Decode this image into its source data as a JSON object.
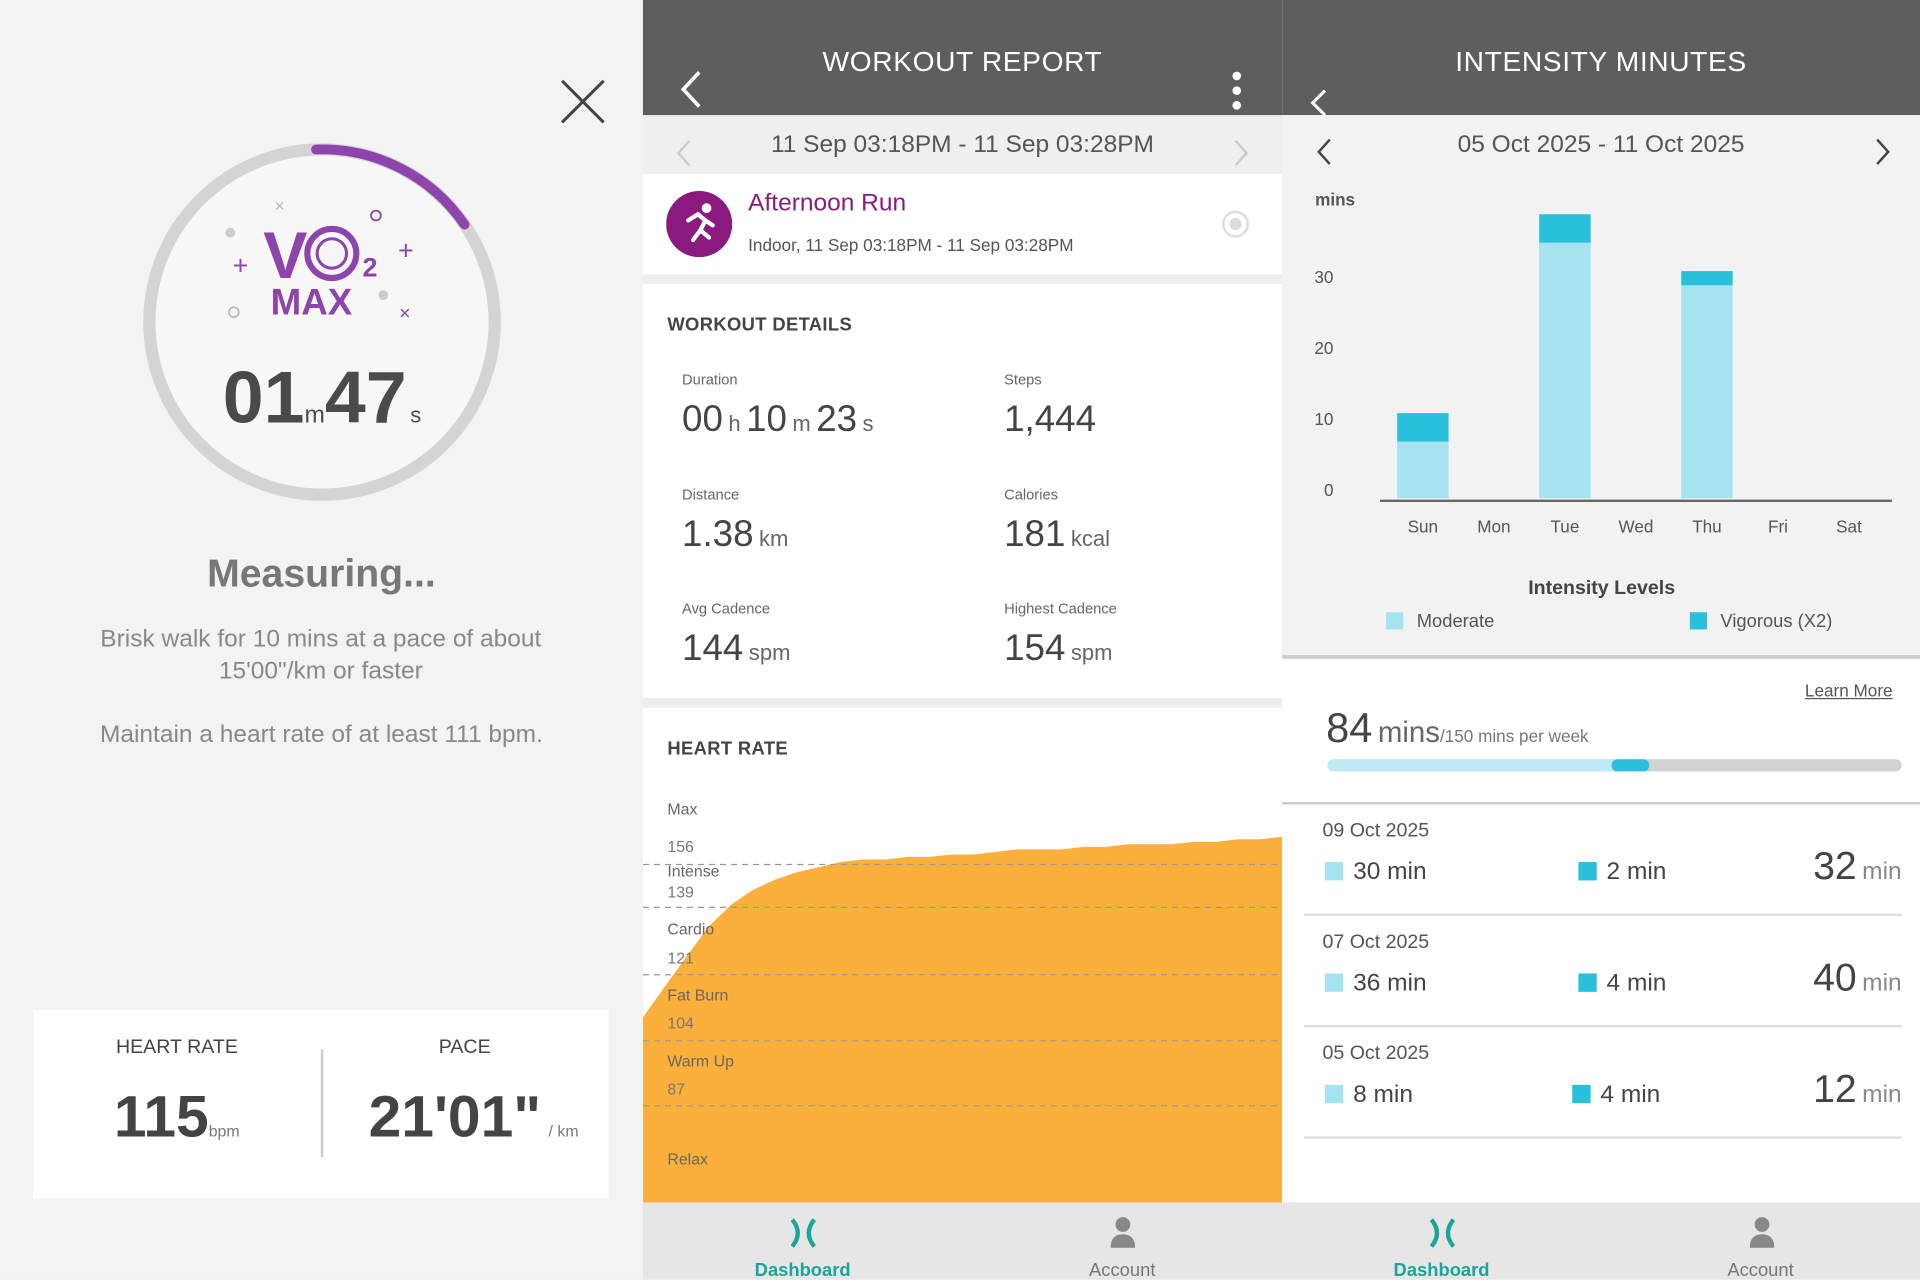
{
  "vo2": {
    "logo_text": "VO2 MAX",
    "timer_min": "01",
    "timer_min_unit": "m",
    "timer_sec": "47",
    "timer_sec_unit": "s",
    "progress_fraction": 0.16,
    "status": "Measuring...",
    "instruction_1": "Brisk walk for 10 mins at a pace of about 15'00\"/km or faster",
    "instruction_2": "Maintain a heart rate of at least 111 bpm.",
    "heart_rate_label": "HEART RATE",
    "heart_rate_value": "115",
    "heart_rate_unit": "bpm",
    "pace_label": "PACE",
    "pace_value": "21'01\"",
    "pace_unit": "/ km",
    "accent": "#8e44ad"
  },
  "workout": {
    "title": "WORKOUT REPORT",
    "range": "11 Sep 03:18PM - 11 Sep 03:28PM",
    "activity_name": "Afternoon Run",
    "activity_sub": "Indoor, 11 Sep 03:18PM - 11 Sep 03:28PM",
    "details_title": "WORKOUT DETAILS",
    "duration_label": "Duration",
    "duration": {
      "h": "00",
      "h_unit": "h",
      "m": "10",
      "m_unit": "m",
      "s": "23",
      "s_unit": "s"
    },
    "steps_label": "Steps",
    "steps": "1,444",
    "distance_label": "Distance",
    "distance": "1.38",
    "distance_unit": "km",
    "calories_label": "Calories",
    "calories": "181",
    "calories_unit": "kcal",
    "avg_cadence_label": "Avg Cadence",
    "avg_cadence": "144",
    "avg_cadence_unit": "spm",
    "high_cadence_label": "Highest Cadence",
    "high_cadence": "154",
    "high_cadence_unit": "spm",
    "heart_rate_title": "HEART RATE"
  },
  "intensity": {
    "title": "INTENSITY MINUTES",
    "range": "05 Oct 2025 - 11 Oct 2025",
    "learn_more": "Learn More",
    "total": "84",
    "total_unit": "mins",
    "goal_text": "/150 mins per week",
    "goal_fraction": 0.56,
    "entries": [
      {
        "date": "09 Oct 2025",
        "moderate": "30 min",
        "vigorous": "2 min",
        "total": "32",
        "unit": "min"
      },
      {
        "date": "07 Oct 2025",
        "moderate": "36 min",
        "vigorous": "4 min",
        "total": "40",
        "unit": "min"
      },
      {
        "date": "05 Oct 2025",
        "moderate": "8 min",
        "vigorous": "4 min",
        "total": "12",
        "unit": "min"
      }
    ]
  },
  "tabs": {
    "dashboard": "Dashboard",
    "account": "Account"
  },
  "colors": {
    "moderate": "#a6e3f0",
    "vigorous": "#29c0dc",
    "hr_fill": "#fbb03b",
    "teal": "#1aa59a",
    "purple": "#8b1a7e"
  },
  "chart_data": [
    {
      "type": "bar",
      "title": "Intensity Levels",
      "ylabel": "mins",
      "categories": [
        "Sun",
        "Mon",
        "Tue",
        "Wed",
        "Thu",
        "Fri",
        "Sat"
      ],
      "yticks": [
        "0",
        "10",
        "20",
        "30"
      ],
      "ylim": [
        0,
        40
      ],
      "stacked": true,
      "series": [
        {
          "name": "Moderate",
          "values": [
            8,
            0,
            36,
            0,
            30,
            0,
            0
          ]
        },
        {
          "name": "Vigorous (X2)",
          "values": [
            4,
            0,
            4,
            0,
            2,
            0,
            0
          ]
        }
      ],
      "legend": "bottom"
    },
    {
      "type": "area",
      "title": "HEART RATE",
      "zones": [
        {
          "name": "Max",
          "value": ""
        },
        {
          "name": "Intense",
          "value": "156"
        },
        {
          "name": "Cardio",
          "value": "139"
        },
        {
          "name": "Fat Burn",
          "value": "121"
        },
        {
          "name": "Warm Up",
          "value": "104"
        },
        {
          "name": "Relax",
          "value": "87"
        }
      ],
      "y": [
        110,
        118,
        126,
        134,
        140,
        146,
        150,
        153,
        155,
        157,
        158,
        158,
        159,
        159,
        160,
        160,
        161,
        162,
        162,
        162,
        163,
        163,
        164,
        164,
        164,
        165,
        165,
        166,
        166,
        167
      ]
    }
  ]
}
